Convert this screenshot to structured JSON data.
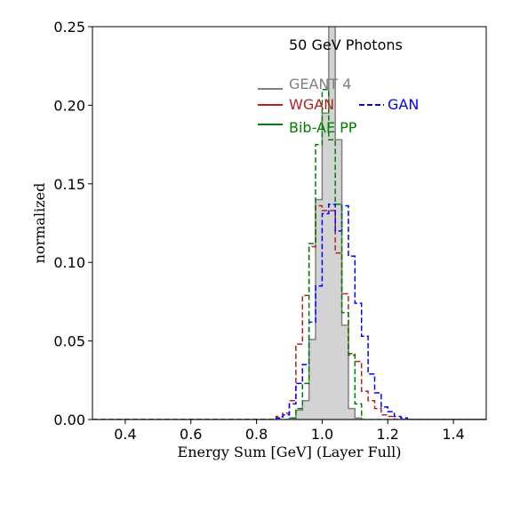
{
  "chart_data": {
    "type": "step-histogram",
    "xlabel": "Energy Sum [GeV] (Layer Full)",
    "ylabel": "normalized",
    "annotation": "50 GeV Photons",
    "xlim": [
      0.3,
      1.5
    ],
    "ylim": [
      0,
      0.25
    ],
    "x_ticks": [
      0.4,
      0.6,
      0.8,
      1.0,
      1.2,
      1.4
    ],
    "x_tick_labels": [
      "0.4",
      "0.6",
      "0.8",
      "1.0",
      "1.2",
      "1.4"
    ],
    "y_ticks": [
      0.0,
      0.05,
      0.1,
      0.15,
      0.2,
      0.25
    ],
    "y_tick_labels": [
      "0.00",
      "0.05",
      "0.10",
      "0.15",
      "0.20",
      "0.25"
    ],
    "bin_edges": [
      0.3,
      0.32,
      0.34,
      0.36,
      0.38,
      0.4,
      0.42,
      0.44,
      0.46,
      0.48,
      0.5,
      0.52,
      0.54,
      0.56,
      0.58,
      0.6,
      0.62,
      0.64,
      0.66,
      0.68,
      0.7,
      0.72,
      0.74,
      0.76,
      0.78,
      0.8,
      0.82,
      0.84,
      0.86,
      0.88,
      0.9,
      0.92,
      0.94,
      0.96,
      0.98,
      1.0,
      1.02,
      1.04,
      1.06,
      1.08,
      1.1,
      1.12,
      1.14,
      1.16,
      1.18,
      1.2,
      1.22,
      1.24,
      1.26,
      1.28,
      1.3,
      1.32,
      1.34,
      1.36,
      1.38,
      1.4,
      1.42,
      1.44,
      1.46,
      1.48,
      1.5
    ],
    "series": [
      {
        "name": "GEANT 4",
        "style": "filled-step",
        "color": "#808080",
        "fill": "#d3d3d3",
        "values": [
          0,
          0,
          0,
          0,
          0,
          0,
          0,
          0,
          0,
          0,
          0,
          0,
          0,
          0,
          0,
          0,
          0,
          0,
          0,
          0,
          0,
          0,
          0,
          0,
          0,
          0,
          0,
          0,
          0,
          0,
          0.001,
          0.006,
          0.012,
          0.051,
          0.14,
          0.195,
          0.265,
          0.178,
          0.06,
          0.007,
          0.001,
          0,
          0,
          0,
          0,
          0,
          0,
          0,
          0,
          0,
          0,
          0,
          0,
          0,
          0,
          0,
          0,
          0,
          0,
          0
        ]
      },
      {
        "name": "WGAN",
        "style": "dashed-step",
        "color": "#b22222",
        "values": [
          0,
          0,
          0,
          0,
          0,
          0,
          0,
          0,
          0,
          0,
          0,
          0,
          0,
          0,
          0,
          0,
          0,
          0,
          0,
          0,
          0,
          0,
          0,
          0,
          0,
          0,
          0,
          0,
          0.002,
          0.004,
          0.012,
          0.048,
          0.079,
          0.11,
          0.136,
          0.133,
          0.133,
          0.106,
          0.08,
          0.042,
          0.037,
          0.018,
          0.012,
          0.007,
          0.003,
          0.002,
          0,
          0,
          0,
          0,
          0,
          0,
          0,
          0,
          0,
          0,
          0,
          0,
          0,
          0
        ]
      },
      {
        "name": "GAN",
        "style": "dashed-step",
        "color": "#0000ff",
        "values": [
          0,
          0,
          0,
          0,
          0,
          0,
          0,
          0,
          0,
          0,
          0,
          0,
          0,
          0,
          0,
          0,
          0,
          0,
          0,
          0,
          0,
          0,
          0,
          0,
          0,
          0,
          0,
          0,
          0.001,
          0.003,
          0.01,
          0.023,
          0.035,
          0.062,
          0.085,
          0.131,
          0.137,
          0.12,
          0.136,
          0.104,
          0.074,
          0.053,
          0.029,
          0.017,
          0.008,
          0.005,
          0.002,
          0.001,
          0,
          0,
          0,
          0,
          0,
          0,
          0,
          0,
          0,
          0,
          0,
          0
        ]
      },
      {
        "name": "Bib-AE PP",
        "style": "dashed-step",
        "color": "#008000",
        "values": [
          0,
          0,
          0,
          0,
          0,
          0,
          0,
          0,
          0,
          0,
          0,
          0,
          0,
          0,
          0,
          0,
          0,
          0,
          0,
          0,
          0,
          0,
          0,
          0,
          0,
          0,
          0,
          0,
          0,
          0,
          0.001,
          0.007,
          0.023,
          0.112,
          0.175,
          0.21,
          0.178,
          0.137,
          0.068,
          0.041,
          0.01,
          0,
          0,
          0,
          0,
          0,
          0,
          0,
          0,
          0,
          0,
          0,
          0,
          0,
          0,
          0,
          0,
          0,
          0,
          0
        ]
      }
    ],
    "legend": {
      "placement": "top-right",
      "entries": [
        {
          "label": "GEANT 4",
          "color": "#808080",
          "style": "solid",
          "text_color": "#808080"
        },
        {
          "label": "WGAN",
          "color": "#b22222",
          "style": "solid",
          "text_color": "#b22222"
        },
        {
          "label": "GAN",
          "color": "#0000ff",
          "style": "dashed",
          "text_color": "#0000ff"
        },
        {
          "label": "Bib-AE PP",
          "color": "#008000",
          "style": "solid",
          "text_color": "#008000"
        }
      ]
    },
    "grid": false
  }
}
